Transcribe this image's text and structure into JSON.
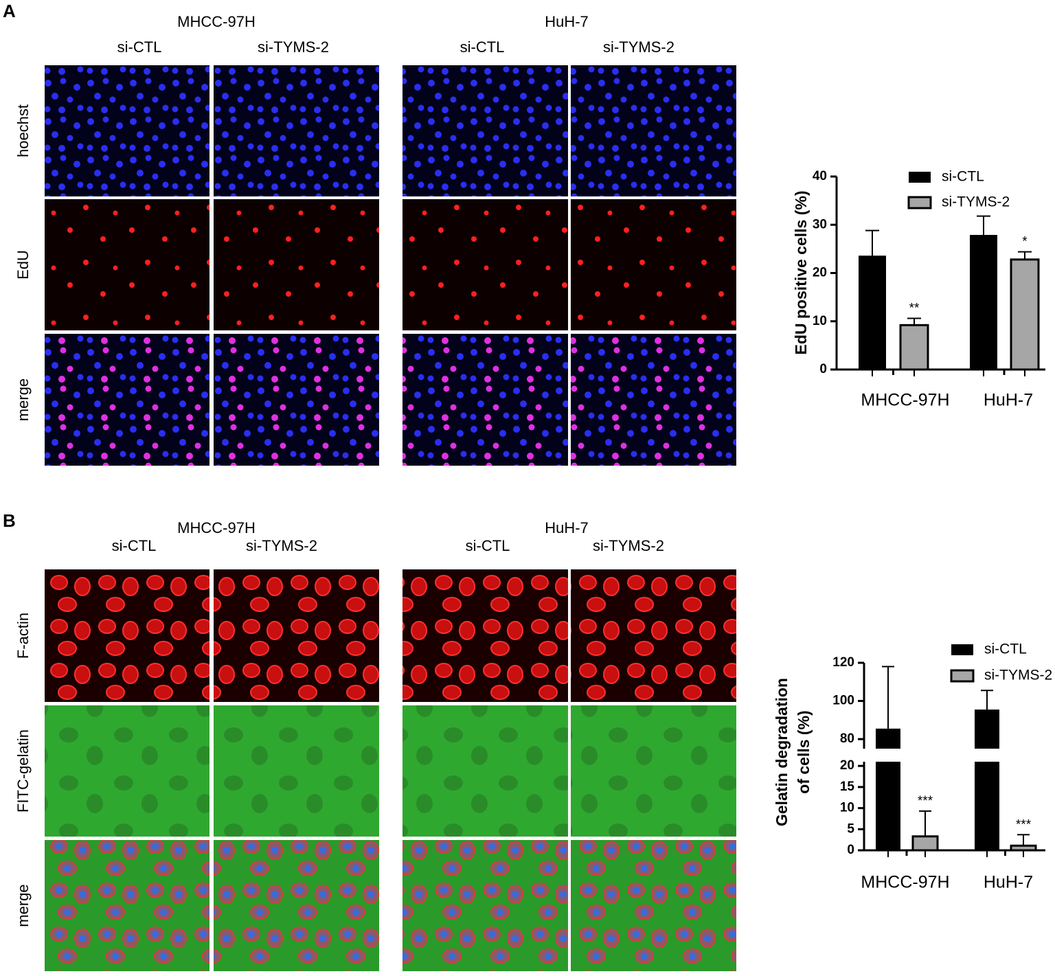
{
  "figure": {
    "panels": [
      {
        "label": "A",
        "cell_lines": [
          {
            "name": "MHCC-97H",
            "conditions": [
              "si-CTL",
              "si-TYMS-2"
            ]
          },
          {
            "name": "HuH-7",
            "conditions": [
              "si-CTL",
              "si-TYMS-2"
            ]
          }
        ],
        "rows": [
          "hoechst",
          "EdU",
          "merge"
        ]
      },
      {
        "label": "B",
        "cell_lines": [
          {
            "name": "MHCC-97H",
            "conditions": [
              "si-CTL",
              "si-TYMS-2"
            ]
          },
          {
            "name": "HuH-7",
            "conditions": [
              "si-CTL",
              "si-TYMS-2"
            ]
          }
        ],
        "rows": [
          "F-actin",
          "FITC-gelatin",
          "merge"
        ]
      }
    ]
  },
  "chart_data": [
    {
      "type": "bar",
      "y_label": [
        "EdU positive cells (%)"
      ],
      "categories": [
        "MHCC-97H",
        "HuH-7"
      ],
      "series": [
        {
          "name": "si-CTL",
          "color": "#000000",
          "values": [
            23.6,
            27.9
          ],
          "errors": [
            5.2,
            3.9
          ]
        },
        {
          "name": "si-TYMS-2",
          "color": "#a6a6a6",
          "values": [
            9.2,
            22.8
          ],
          "errors": [
            1.4,
            1.6
          ],
          "annotations": [
            "**",
            "*"
          ]
        }
      ],
      "y_segments": [
        {
          "ylim": [
            0,
            40
          ],
          "yticks": [
            0,
            10,
            20,
            30,
            40
          ]
        }
      ]
    },
    {
      "type": "bar",
      "y_label": [
        "Gelatin degradation",
        "of cells (%)"
      ],
      "categories": [
        "MHCC-97H",
        "HuH-7"
      ],
      "series": [
        {
          "name": "si-CTL",
          "color": "#000000",
          "values": [
            85.5,
            95.5
          ],
          "errors": [
            32.5,
            10
          ]
        },
        {
          "name": "si-TYMS-2",
          "color": "#a6a6a6",
          "values": [
            3.3,
            1.1
          ],
          "errors": [
            6,
            2.6
          ],
          "annotations": [
            "***",
            "***"
          ]
        }
      ],
      "y_segments": [
        {
          "ylim": [
            0,
            21
          ],
          "yticks": [
            0,
            5,
            10,
            15,
            20
          ]
        },
        {
          "ylim": [
            75,
            120
          ],
          "yticks": [
            80,
            100,
            120
          ]
        }
      ]
    }
  ]
}
